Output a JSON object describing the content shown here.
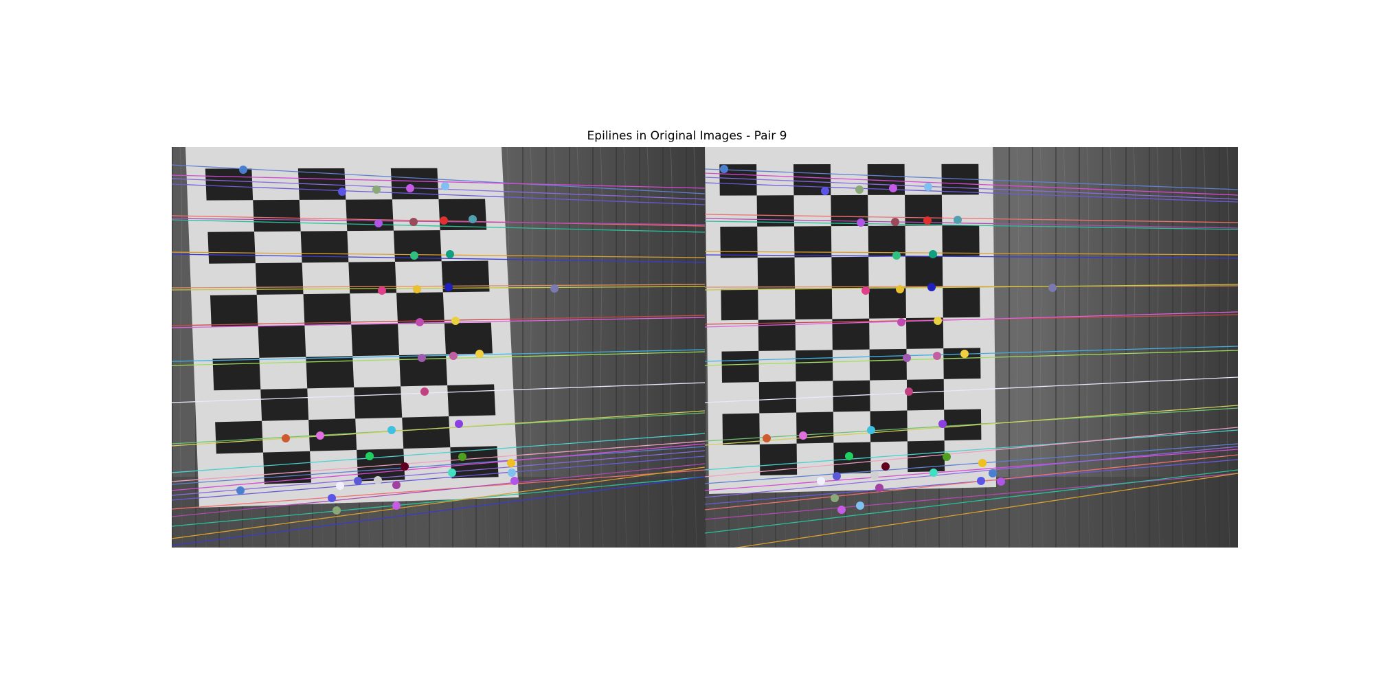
{
  "figure": {
    "title": "Epilines in Original Images - Pair 9"
  },
  "images": [
    {
      "name": "left-image"
    },
    {
      "name": "right-image"
    }
  ],
  "colors": {
    "background": "#ffffff",
    "board_light": "#d9d9d9",
    "board_dark": "#222222",
    "wood_dark": "#4a4a4a"
  },
  "line_colors": [
    "#5f7fd0",
    "#d84ad8",
    "#8a6be0",
    "#6a5ad8",
    "#f07070",
    "#b04ab0",
    "#29c29a",
    "#d8a030",
    "#3a3ad0",
    "#e09060",
    "#c8c840",
    "#c84a4a",
    "#e060e0",
    "#40b0e0",
    "#a0e060",
    "#e8e8ff",
    "#70c070",
    "#d0d060",
    "#4ad0d0",
    "#f0a0c0"
  ],
  "point_colors": [
    "#4a7fd0",
    "#5a55e6",
    "#8aa878",
    "#c65ce6",
    "#7fc0f0",
    "#b055e6",
    "#9a4a5a",
    "#e03030",
    "#50a0b0",
    "#30c080",
    "#10a080",
    "#7a7ab0",
    "#e0408a",
    "#e8c030",
    "#2020c0",
    "#c04ab0",
    "#e8d040",
    "#a05ab0",
    "#c060a0",
    "#f0d040",
    "#c04080",
    "#d05a30",
    "#e070e0",
    "#40c0e0",
    "#8a40e0",
    "#20d060",
    "#600020",
    "#50a020",
    "#f0c020",
    "#d0d0d0",
    "#5a5ad8",
    "#40e0c0",
    "#f0f0ff",
    "#a040a0"
  ]
}
